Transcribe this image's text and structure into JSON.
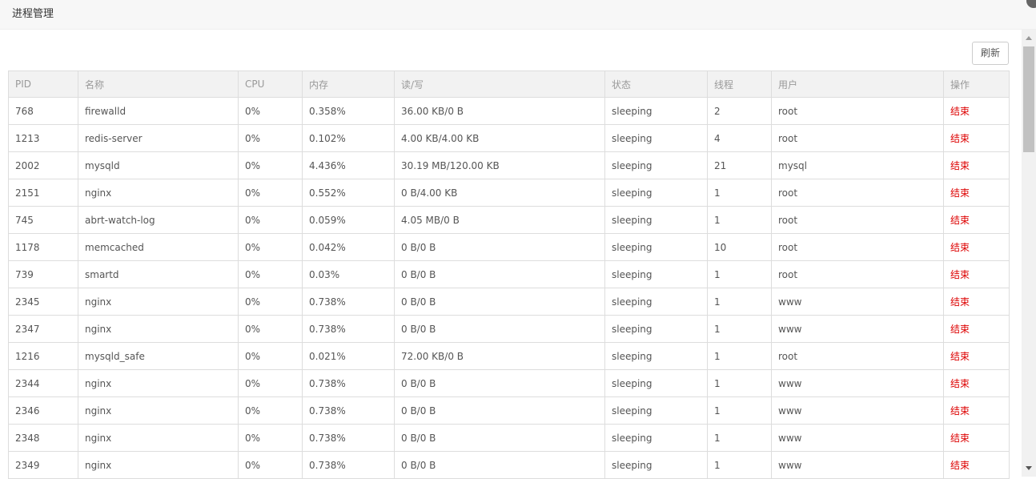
{
  "title": "进程管理",
  "refresh_label": "刷新",
  "columns": [
    "PID",
    "名称",
    "CPU",
    "内存",
    "读/写",
    "状态",
    "线程",
    "用户",
    "操作"
  ],
  "rows": [
    [
      "768",
      "firewalld",
      "0%",
      "0.358%",
      "36.00 KB/0 B",
      "sleeping",
      "2",
      "root",
      "结束"
    ],
    [
      "1213",
      "redis-server",
      "0%",
      "0.102%",
      "4.00 KB/4.00 KB",
      "sleeping",
      "4",
      "root",
      "结束"
    ],
    [
      "2002",
      "mysqld",
      "0%",
      "4.436%",
      "30.19 MB/120.00 KB",
      "sleeping",
      "21",
      "mysql",
      "结束"
    ],
    [
      "2151",
      "nginx",
      "0%",
      "0.552%",
      "0 B/4.00 KB",
      "sleeping",
      "1",
      "root",
      "结束"
    ],
    [
      "745",
      "abrt-watch-log",
      "0%",
      "0.059%",
      "4.05 MB/0 B",
      "sleeping",
      "1",
      "root",
      "结束"
    ],
    [
      "1178",
      "memcached",
      "0%",
      "0.042%",
      "0 B/0 B",
      "sleeping",
      "10",
      "root",
      "结束"
    ],
    [
      "739",
      "smartd",
      "0%",
      "0.03%",
      "0 B/0 B",
      "sleeping",
      "1",
      "root",
      "结束"
    ],
    [
      "2345",
      "nginx",
      "0%",
      "0.738%",
      "0 B/0 B",
      "sleeping",
      "1",
      "www",
      "结束"
    ],
    [
      "2347",
      "nginx",
      "0%",
      "0.738%",
      "0 B/0 B",
      "sleeping",
      "1",
      "www",
      "结束"
    ],
    [
      "1216",
      "mysqld_safe",
      "0%",
      "0.021%",
      "72.00 KB/0 B",
      "sleeping",
      "1",
      "root",
      "结束"
    ],
    [
      "2344",
      "nginx",
      "0%",
      "0.738%",
      "0 B/0 B",
      "sleeping",
      "1",
      "www",
      "结束"
    ],
    [
      "2346",
      "nginx",
      "0%",
      "0.738%",
      "0 B/0 B",
      "sleeping",
      "1",
      "www",
      "结束"
    ],
    [
      "2348",
      "nginx",
      "0%",
      "0.738%",
      "0 B/0 B",
      "sleeping",
      "1",
      "www",
      "结束"
    ],
    [
      "2349",
      "nginx",
      "0%",
      "0.738%",
      "0 B/0 B",
      "sleeping",
      "1",
      "www",
      "结束"
    ]
  ]
}
